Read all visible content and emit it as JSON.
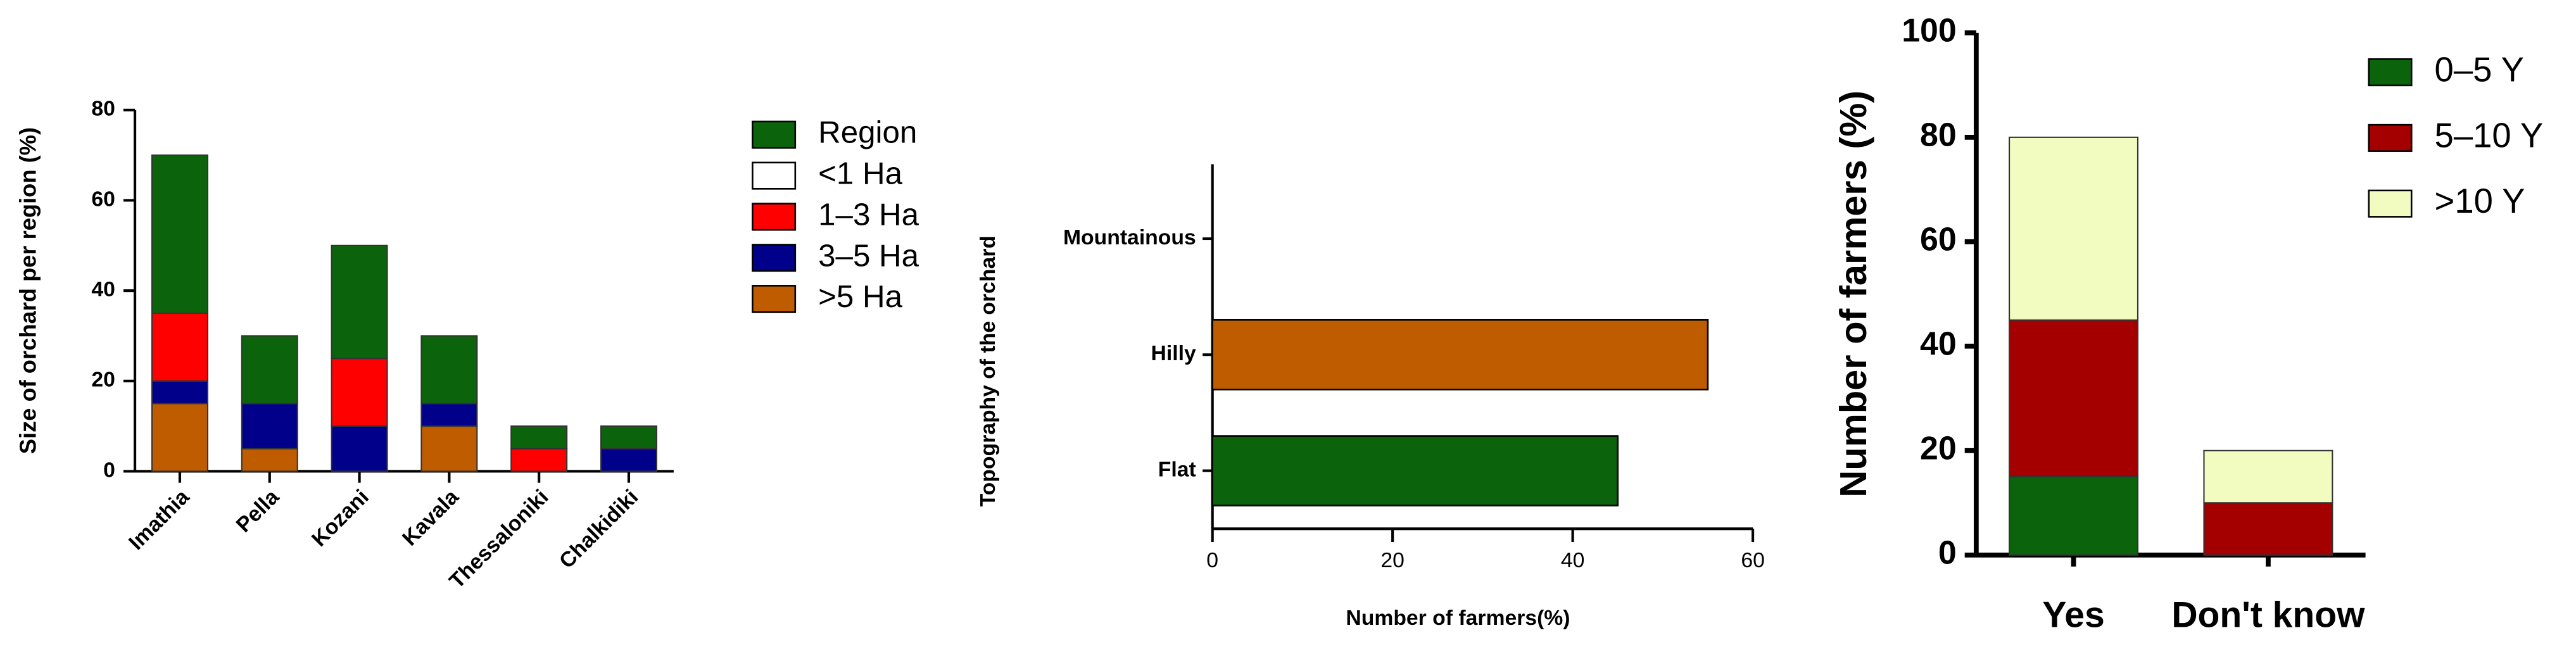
{
  "chart_data": [
    {
      "type": "bar",
      "stacked": true,
      "ylabel": "Size of orchard per region (%)",
      "categories": [
        "Imathia",
        "Pella",
        "Kozani",
        "Kavala",
        "Thessaloniki",
        "Chalkidiki"
      ],
      "series": [
        {
          "name": "Region",
          "color": "#0b640b",
          "values": [
            35,
            15,
            25,
            15,
            5,
            5
          ]
        },
        {
          "name": "<1 Ha",
          "color": "#ffffff",
          "values": [
            0,
            0,
            0,
            0,
            0,
            0
          ]
        },
        {
          "name": "1–3 Ha",
          "color": "#ff0000",
          "values": [
            15,
            0,
            15,
            0,
            5,
            0
          ]
        },
        {
          "name": "3–5 Ha",
          "color": "#00008b",
          "values": [
            5,
            10,
            10,
            5,
            0,
            5
          ]
        },
        {
          "name": ">5 Ha",
          "color": "#bf5c00",
          "values": [
            15,
            5,
            0,
            10,
            0,
            0
          ]
        }
      ],
      "ylim": [
        0,
        80
      ],
      "yticks": [
        0,
        20,
        40,
        60,
        80
      ]
    },
    {
      "type": "bar",
      "orientation": "horizontal",
      "xlabel": "Number of farmers(%)",
      "ylabel": "Topography of the orchard",
      "categories": [
        "Flat",
        "Hilly",
        "Mountainous"
      ],
      "values": [
        45,
        55,
        0
      ],
      "colors": [
        "#0b640b",
        "#bf5c00",
        "#0b640b"
      ],
      "xlim": [
        0,
        60
      ],
      "xticks": [
        0,
        20,
        40,
        60
      ]
    },
    {
      "type": "bar",
      "stacked": true,
      "ylabel": "Number of farmers (%)",
      "categories": [
        "Yes",
        "Don't know"
      ],
      "series": [
        {
          "name": "0–5 Y",
          "color": "#0b640b",
          "values": [
            15,
            0
          ]
        },
        {
          "name": "5–10 Y",
          "color": "#a50000",
          "values": [
            30,
            10
          ]
        },
        {
          "name": ">10 Y",
          "color": "#f2fbc0",
          "values": [
            35,
            10
          ]
        }
      ],
      "ylim": [
        0,
        100
      ],
      "yticks": [
        0,
        20,
        40,
        60,
        80,
        100
      ]
    }
  ]
}
